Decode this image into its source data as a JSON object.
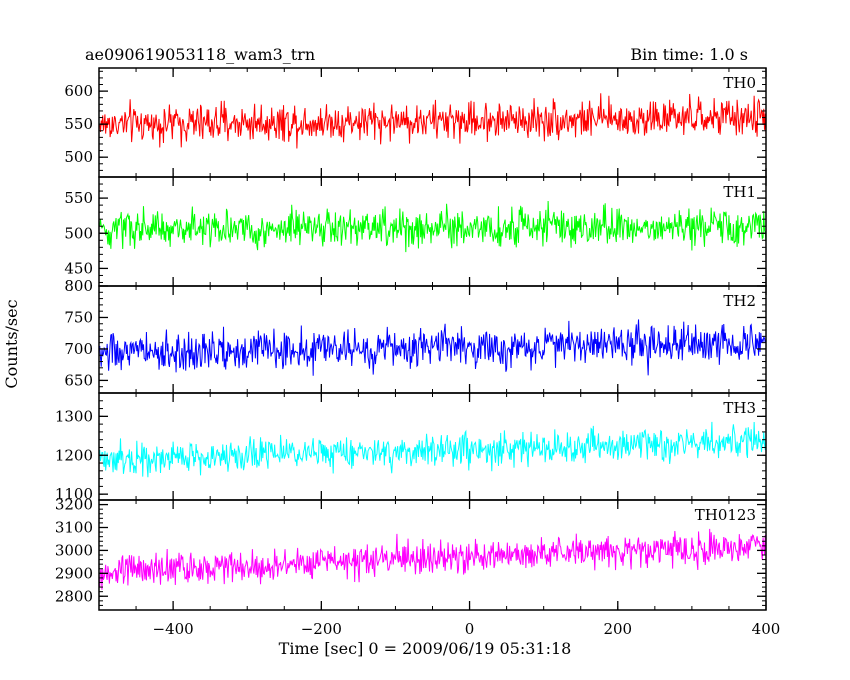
{
  "header": {
    "title": "ae090619053118_wam3_trn",
    "bin_time": "Bin time: 1.0 s"
  },
  "chart_data": {
    "type": "line",
    "title": "ae090619053118_wam3_trn",
    "subtitle": "Bin time: 1.0 s",
    "xlabel": "Time [sec] 0 = 2009/06/19 05:31:18",
    "ylabel": "Counts/sec",
    "xlim": [
      -500,
      400
    ],
    "x_ticks": [
      -400,
      -200,
      0,
      200,
      400
    ],
    "x_tick_labels": [
      "−400",
      "−200",
      "0",
      "200",
      "400"
    ],
    "bin_time_s": 1.0,
    "x_start": -499,
    "x_end": 400,
    "grid": false,
    "panels": [
      {
        "name": "TH0",
        "color": "#ff0000",
        "ylim": [
          470,
          635
        ],
        "y_ticks": [
          500,
          550,
          600
        ],
        "y_tick_labels": [
          "500",
          "550",
          "600"
        ],
        "mean_start": 550,
        "mean_end": 560,
        "noise_amplitude": 24
      },
      {
        "name": "TH1",
        "color": "#00ff00",
        "ylim": [
          425,
          580
        ],
        "y_ticks": [
          450,
          500,
          550
        ],
        "y_tick_labels": [
          "450",
          "500",
          "550"
        ],
        "mean_start": 505,
        "mean_end": 510,
        "noise_amplitude": 23
      },
      {
        "name": "TH2",
        "color": "#0000ff",
        "ylim": [
          630,
          800
        ],
        "y_ticks": [
          650,
          700,
          750,
          800
        ],
        "y_tick_labels": [
          "650",
          "700",
          "750",
          "800"
        ],
        "mean_start": 693,
        "mean_end": 710,
        "noise_amplitude": 26
      },
      {
        "name": "TH3",
        "color": "#00ffff",
        "ylim": [
          1085,
          1360
        ],
        "y_ticks": [
          1100,
          1200,
          1300
        ],
        "y_tick_labels": [
          "1100",
          "1200",
          "1300"
        ],
        "mean_start": 1190,
        "mean_end": 1235,
        "noise_amplitude": 35
      },
      {
        "name": "TH0123",
        "color": "#ff00ff",
        "ylim": [
          2740,
          3220
        ],
        "y_ticks": [
          2800,
          2900,
          3000,
          3100,
          3200
        ],
        "y_tick_labels": [
          "2800",
          "2900",
          "3000",
          "3100",
          "3200"
        ],
        "mean_start": 2910,
        "mean_end": 3020,
        "noise_amplitude": 60
      }
    ]
  }
}
